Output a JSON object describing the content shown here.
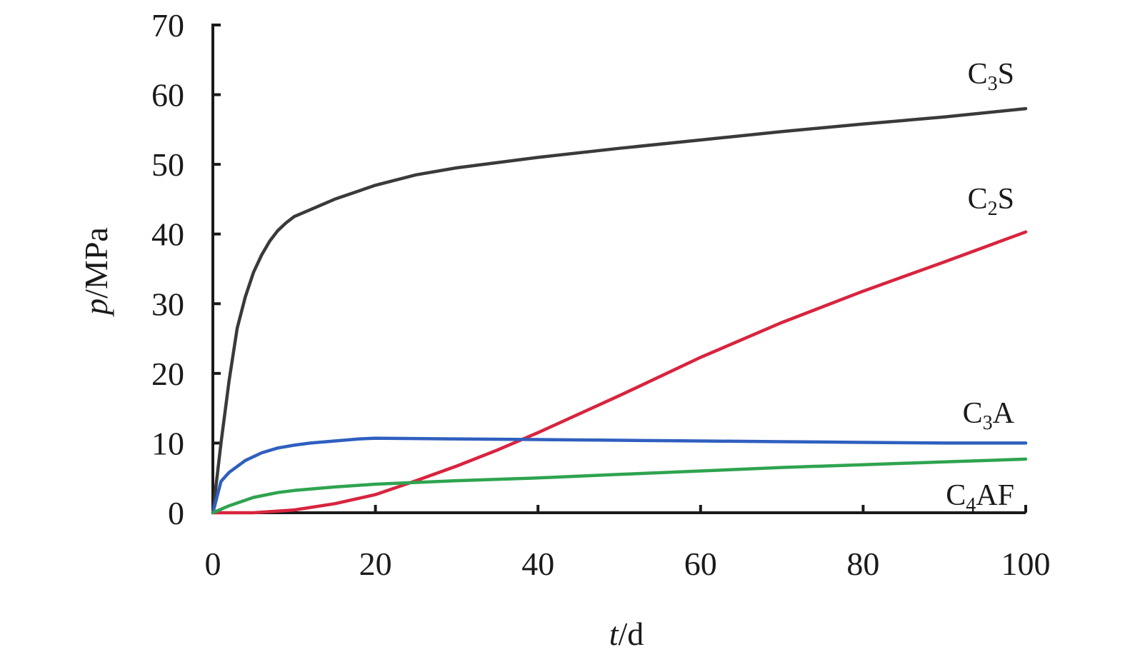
{
  "chart_data": {
    "type": "line",
    "xlabel": {
      "var": "t",
      "unit": "/d"
    },
    "ylabel": {
      "var": "p",
      "unit": "/MPa"
    },
    "xlim": [
      0,
      100
    ],
    "ylim": [
      0,
      70
    ],
    "xticks": [
      "0",
      "20",
      "40",
      "60",
      "80",
      "100"
    ],
    "yticks": [
      "0",
      "10",
      "20",
      "30",
      "40",
      "50",
      "60",
      "70"
    ],
    "grid": false,
    "legend": "inline-right",
    "series": [
      {
        "name": "C3S",
        "label": {
          "base": "C",
          "sub": "3",
          "rest": "S"
        },
        "color": "#3a3a3a",
        "x": [
          0,
          1,
          2,
          3,
          4,
          5,
          6,
          7,
          8,
          9,
          10,
          12,
          15,
          18,
          20,
          25,
          30,
          40,
          50,
          60,
          70,
          80,
          90,
          100
        ],
        "y": [
          0,
          10,
          19,
          26.5,
          31,
          34.5,
          37,
          39,
          40.5,
          41.6,
          42.5,
          43.5,
          45,
          46.2,
          47,
          48.5,
          49.5,
          51,
          52.3,
          53.5,
          54.7,
          55.8,
          56.8,
          58
        ]
      },
      {
        "name": "C2S",
        "label": {
          "base": "C",
          "sub": "2",
          "rest": "S"
        },
        "color": "#d8243e",
        "x": [
          0,
          5,
          10,
          15,
          20,
          25,
          30,
          35,
          40,
          50,
          60,
          70,
          80,
          90,
          100
        ],
        "y": [
          0,
          0,
          0.4,
          1.3,
          2.6,
          4.6,
          6.7,
          9,
          11.5,
          16.8,
          22.3,
          27.3,
          31.8,
          36,
          40.3
        ]
      },
      {
        "name": "C3A",
        "label": {
          "base": "C",
          "sub": "3",
          "rest": "A"
        },
        "color": "#2f5fbf",
        "x": [
          0,
          1,
          2,
          4,
          6,
          8,
          10,
          12,
          15,
          18,
          20,
          30,
          40,
          50,
          60,
          70,
          80,
          90,
          100
        ],
        "y": [
          0,
          4.5,
          5.8,
          7.5,
          8.6,
          9.3,
          9.7,
          10,
          10.3,
          10.6,
          10.7,
          10.6,
          10.5,
          10.4,
          10.3,
          10.2,
          10.1,
          10,
          10
        ]
      },
      {
        "name": "C4AF",
        "label": {
          "base": "C",
          "sub": "4",
          "rest": "AF"
        },
        "color": "#2ea44f",
        "x": [
          0,
          2,
          5,
          8,
          10,
          15,
          20,
          30,
          40,
          50,
          60,
          70,
          80,
          90,
          100
        ],
        "y": [
          0,
          1,
          2.2,
          2.9,
          3.2,
          3.7,
          4.1,
          4.6,
          5,
          5.5,
          6,
          6.5,
          6.9,
          7.3,
          7.7
        ]
      }
    ]
  }
}
